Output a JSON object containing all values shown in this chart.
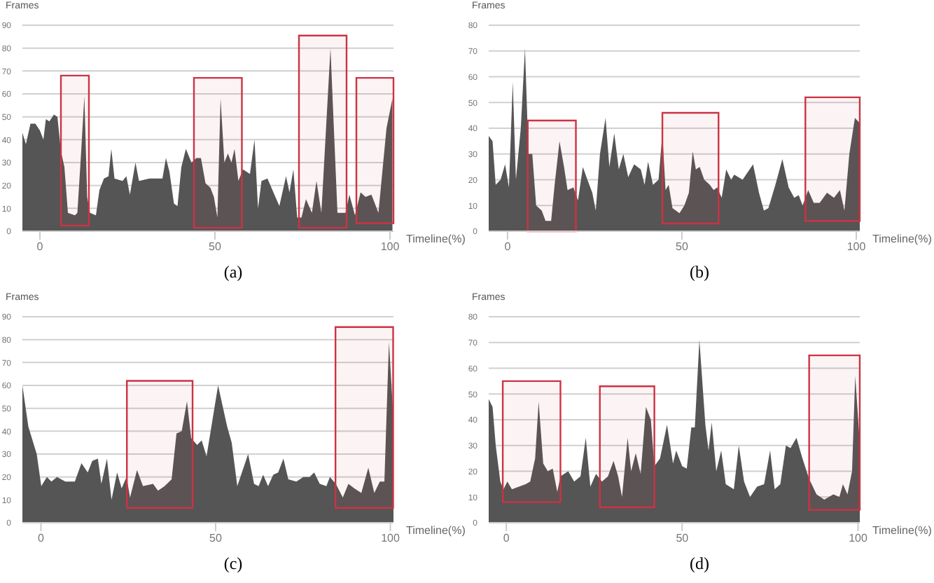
{
  "chart_data": [
    {
      "type": "area",
      "title": "(a)",
      "ylabel": "Frames",
      "xlabel": "Timeline(%)",
      "xlim": [
        -5,
        101
      ],
      "xticks": [
        0,
        50,
        100
      ],
      "ylim": [
        0,
        90
      ],
      "yticks": [
        0,
        10,
        20,
        30,
        40,
        50,
        60,
        70,
        80,
        90
      ],
      "grid": "y",
      "color": "#555555",
      "x": [
        -5,
        -4,
        -2.7,
        -1.3,
        0,
        1,
        1.7,
        2.7,
        4,
        5,
        6,
        7,
        8,
        10,
        10.7,
        11.6,
        12.7,
        13.5,
        14.3,
        16,
        17,
        18.3,
        19.6,
        20.4,
        21.3,
        23.6,
        24.7,
        25.7,
        27.3,
        28.3,
        31.3,
        35,
        36,
        37,
        38.3,
        39.3,
        40.4,
        41.7,
        43.3,
        44.7,
        46,
        47.3,
        48.7,
        49.7,
        50.7,
        51.6,
        52.7,
        53.7,
        54.7,
        55.6,
        56.7,
        58,
        60,
        61.3,
        62.3,
        63.3,
        65,
        66.7,
        68.4,
        70.3,
        71.3,
        72.4,
        73.5,
        74.7,
        76,
        77.7,
        79,
        80.4,
        83,
        85,
        87.3,
        88.4,
        90,
        91.6,
        93,
        94.7,
        96.7,
        99,
        100.7
      ],
      "values": [
        43,
        38,
        47,
        47,
        44,
        40,
        49,
        48,
        51,
        50,
        35,
        28,
        8,
        7,
        8,
        30,
        59,
        15,
        8,
        7,
        18,
        23,
        24,
        36,
        23,
        22,
        24,
        16,
        30,
        22,
        23,
        23,
        32,
        26,
        12,
        11,
        28,
        36,
        30,
        32,
        32,
        21,
        19,
        15,
        6,
        58,
        30,
        34,
        30,
        36,
        22,
        27,
        25,
        40,
        10,
        22,
        23,
        17,
        11,
        24,
        17,
        27,
        6,
        6,
        14,
        8,
        22,
        8,
        80,
        8,
        8,
        16,
        7,
        17,
        15,
        16,
        8,
        45,
        58
      ],
      "bands": [
        {
          "axis": "x",
          "from": 6,
          "to": 14,
          "color": "#cc3344"
        },
        {
          "axis": "x",
          "from": 44,
          "to": 57.7,
          "color": "#cc3344"
        },
        {
          "axis": "x",
          "from": 74,
          "to": 87.6,
          "color": "#cc3344"
        },
        {
          "axis": "x",
          "from": 90.4,
          "to": 101,
          "color": "#cc3344"
        }
      ]
    },
    {
      "type": "area",
      "title": "(b)",
      "ylabel": "Frames",
      "xlabel": "Timeline(%)",
      "xlim": [
        -5.4,
        101
      ],
      "xticks": [
        0,
        50,
        100
      ],
      "ylim": [
        0,
        80
      ],
      "yticks": [
        0,
        10,
        20,
        30,
        40,
        50,
        60,
        70,
        80
      ],
      "grid": "y",
      "color": "#555555",
      "x": [
        -5.4,
        -4.3,
        -3.4,
        -2,
        -0.7,
        0.4,
        1.5,
        2.4,
        3.8,
        5,
        6,
        7.1,
        8.2,
        9.8,
        10.9,
        12.5,
        13.5,
        14.9,
        16.2,
        17.2,
        18.9,
        20.2,
        21.6,
        22.9,
        24.3,
        25.3,
        26.5,
        28.1,
        29.2,
        30.6,
        31.9,
        33.2,
        34.6,
        36.3,
        38.2,
        39.3,
        40.3,
        41.7,
        43.3,
        44.4,
        45.3,
        46.2,
        47.3,
        49.3,
        50.7,
        52,
        53.1,
        54,
        55.1,
        56.4,
        58,
        59.1,
        60.1,
        61.4,
        62.7,
        64.1,
        65,
        67.4,
        70.4,
        72.1,
        73.5,
        74.8,
        76.8,
        78.8,
        80.6,
        82.2,
        83.5,
        84.6,
        86.2,
        87.8,
        89.5,
        91.6,
        93.6,
        95.3,
        96.6,
        98,
        99.6,
        101
      ],
      "values": [
        37,
        35,
        18,
        20,
        26,
        17,
        58,
        20,
        40,
        71,
        30,
        30,
        10,
        8,
        4,
        4,
        18,
        35,
        25,
        16,
        17,
        12,
        25,
        20,
        15,
        8,
        30,
        44,
        25,
        38,
        24,
        30,
        21,
        26,
        24,
        18,
        27,
        18,
        20,
        38,
        16,
        18,
        9,
        7,
        10,
        15,
        31,
        24,
        25,
        20,
        18,
        16,
        17,
        13,
        24,
        20,
        22,
        20,
        26,
        15,
        8,
        9,
        18,
        28,
        17,
        13,
        14,
        10,
        16,
        11,
        11,
        15,
        13,
        16,
        8,
        30,
        44,
        42
      ],
      "bands": [
        {
          "axis": "x",
          "from": 5.8,
          "to": 19.6,
          "color": "#cc3344"
        },
        {
          "axis": "x",
          "from": 44.4,
          "to": 60.5,
          "color": "#cc3344"
        },
        {
          "axis": "x",
          "from": 85.4,
          "to": 101,
          "color": "#cc3344"
        }
      ]
    },
    {
      "type": "area",
      "title": "(c)",
      "ylabel": "Frames",
      "xlabel": "Timeline(%)",
      "xlim": [
        -5.3,
        100.9
      ],
      "xticks": [
        0,
        50,
        100
      ],
      "ylim": [
        0,
        90
      ],
      "yticks": [
        0,
        10,
        20,
        30,
        40,
        50,
        60,
        70,
        80,
        90
      ],
      "grid": "y",
      "color": "#555555",
      "x": [
        -5.3,
        -3.6,
        -2.2,
        -1.2,
        0.1,
        1.7,
        3,
        4.6,
        7,
        9.7,
        11.6,
        13.4,
        14.7,
        16.3,
        17.3,
        18.9,
        20.2,
        21.8,
        23.1,
        24.5,
        25.5,
        27.5,
        29.2,
        32.1,
        33.5,
        35.4,
        37.4,
        38.8,
        40.3,
        41.8,
        43,
        44.7,
        46,
        47.4,
        50.7,
        53.3,
        54.6,
        56.2,
        59.3,
        61,
        62.3,
        63.6,
        65,
        66.5,
        67.9,
        69.4,
        70.8,
        73.1,
        75.1,
        76.9,
        78.2,
        79.8,
        81.7,
        82.7,
        84.4,
        86.4,
        88,
        89.7,
        91.7,
        93.7,
        95.4,
        97,
        98.3,
        99.6,
        100.9
      ],
      "values": [
        60,
        42,
        35,
        30,
        16,
        20,
        18,
        20,
        18,
        18,
        26,
        22,
        27,
        28,
        17,
        28,
        10,
        22,
        15,
        20,
        11,
        23,
        16,
        17,
        14,
        16,
        19,
        39,
        40,
        53,
        37,
        34,
        36,
        29,
        60,
        42,
        35,
        16,
        30,
        17,
        16,
        21,
        16,
        21,
        22,
        28,
        19,
        18,
        20,
        20,
        22,
        17,
        16,
        20,
        17,
        11,
        17,
        15,
        13,
        24,
        13,
        18,
        18,
        79,
        45
      ],
      "bands": [
        {
          "axis": "x",
          "from": 24.6,
          "to": 43.4,
          "color": "#cc3344"
        },
        {
          "axis": "x",
          "from": 84.3,
          "to": 100.8,
          "color": "#cc3344"
        }
      ]
    },
    {
      "type": "area",
      "title": "(d)",
      "ylabel": "Frames",
      "xlabel": "Timeline(%)",
      "xlim": [
        -5,
        100.5
      ],
      "xticks": [
        0,
        50,
        100
      ],
      "ylim": [
        0,
        80
      ],
      "yticks": [
        0,
        10,
        20,
        30,
        40,
        50,
        60,
        70,
        80
      ],
      "grid": "y",
      "color": "#555555",
      "x": [
        -5,
        -3.9,
        -3,
        -1.7,
        -0.8,
        0.3,
        1.6,
        3.6,
        5.5,
        6.8,
        8.2,
        9.2,
        10.5,
        11.8,
        13.2,
        14.5,
        15.4,
        17.6,
        19.3,
        21.1,
        22.6,
        23.9,
        25.5,
        27.2,
        28.9,
        30.5,
        31.8,
        32.9,
        34.5,
        35.5,
        36.8,
        38.2,
        39.7,
        41.1,
        42.1,
        43.7,
        45.7,
        47.4,
        48.3,
        50,
        51.3,
        52.6,
        53.6,
        54.9,
        56.6,
        57.5,
        58.4,
        59.7,
        61.1,
        62.4,
        64.7,
        66.1,
        67.6,
        69.3,
        71.3,
        73.3,
        75,
        76.3,
        77.9,
        79.5,
        80.8,
        82.5,
        84.2,
        86.1,
        88.2,
        90.4,
        93,
        94.7,
        95.7,
        97,
        98.3,
        99.2,
        100.5
      ],
      "values": [
        48,
        45,
        30,
        16,
        13,
        16,
        13,
        14,
        15,
        16,
        25,
        47,
        23,
        20,
        21,
        12,
        18,
        20,
        16,
        18,
        33,
        14,
        19,
        16,
        18,
        24,
        18,
        10,
        33,
        20,
        27,
        19,
        45,
        40,
        22,
        25,
        38,
        23,
        28,
        22,
        21,
        37,
        37,
        71,
        38,
        28,
        39,
        20,
        28,
        15,
        13,
        30,
        16,
        10,
        14,
        15,
        28,
        13,
        15,
        30,
        29,
        33,
        25,
        17,
        11,
        9,
        11,
        10,
        15,
        11,
        20,
        57,
        31
      ],
      "bands": [
        {
          "axis": "x",
          "from": -1,
          "to": 15.4,
          "color": "#cc3344"
        },
        {
          "axis": "x",
          "from": 26.6,
          "to": 42.1,
          "color": "#cc3344"
        },
        {
          "axis": "x",
          "from": 86.1,
          "to": 100.5,
          "color": "#cc3344"
        }
      ]
    }
  ]
}
